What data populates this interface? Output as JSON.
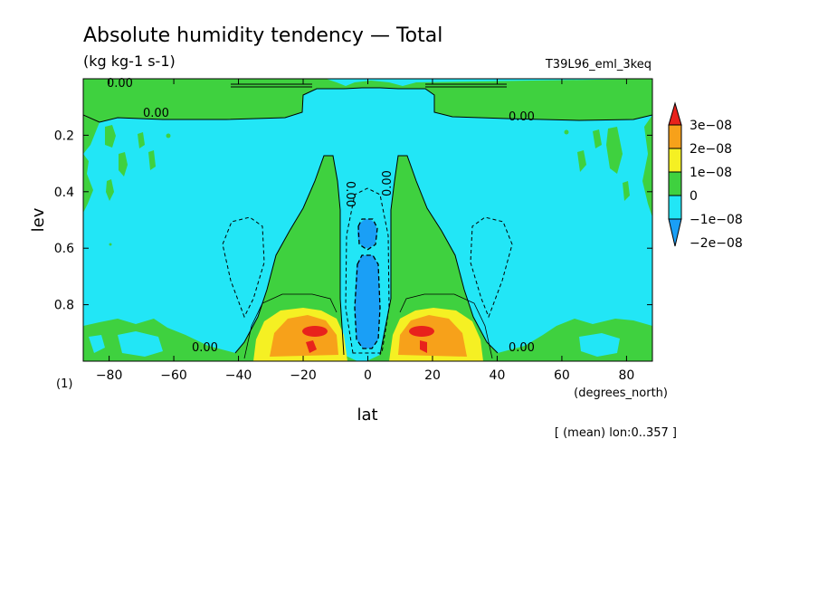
{
  "chart_data": {
    "type": "heatmap",
    "title": "Absolute humidity tendency — Total",
    "units": "(kg kg-1 s-1)",
    "experiment": "T39L96_eml_3keq",
    "xlabel": "lat",
    "xunits": "(degrees_north)",
    "ylabel": "lev",
    "ylabel_unit": "(1)",
    "footnote": "[ (mean) lon:0..357 ]",
    "xlim": [
      -88,
      88
    ],
    "ylim": [
      0.0,
      1.0
    ],
    "y_inverted": true,
    "x_ticks": [
      -80,
      -60,
      -40,
      -20,
      0,
      20,
      40,
      60,
      80
    ],
    "x_tick_labels": [
      "−80",
      "−60",
      "−40",
      "−20",
      "0",
      "20",
      "40",
      "60",
      "80"
    ],
    "y_ticks": [
      0.2,
      0.4,
      0.6,
      0.8
    ],
    "y_tick_labels": [
      "0.2",
      "0.4",
      "0.6",
      "0.8"
    ],
    "contour_labels": [
      "0.00",
      "0.00",
      "0.00",
      "0.00",
      "0.00",
      "0.00",
      "0.00",
      "0.00"
    ],
    "colorbar": {
      "levels": [
        "3e−08",
        "2e−08",
        "1e−08",
        "0",
        "−1e−08",
        "−2e−08"
      ],
      "colors": [
        "#e8221c",
        "#f7a11a",
        "#f5f023",
        "#3fd13f",
        "#22e6f6",
        "#1a9ff6"
      ]
    },
    "background_color": "#22e6f6"
  }
}
